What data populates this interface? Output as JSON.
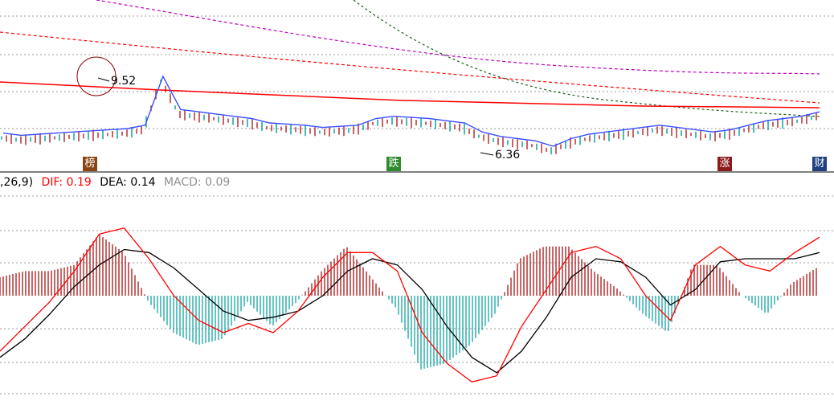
{
  "colors": {
    "up": "#b22222",
    "down": "#009b9b",
    "ma_main": "#ff0000",
    "ma_line": "#3a50ff",
    "dash_red": "#ff0000",
    "dash_purple": "#c000c0",
    "dash_green": "#206020",
    "dif": "#ff0000",
    "dea": "#000000",
    "macd_pos": "#a00000",
    "macd_neg": "#009b9b",
    "grid": "#9a9a9a",
    "divider": "#000000"
  },
  "price_panel": {
    "high_label": "9.52",
    "low_label": "6.36"
  },
  "markers": [
    {
      "label": "榜",
      "color": "#8b4513"
    },
    {
      "label": "跌",
      "color": "#2e8b2e"
    },
    {
      "label": "涨",
      "color": "#8b1a1a"
    },
    {
      "label": "财",
      "color": "#1f3f7f"
    }
  ],
  "macd_legend": {
    "params": ",26,9)",
    "dif": "DIF: 0.19",
    "dea": "DEA: 0.14",
    "macd": "MACD: 0.09"
  },
  "chart_data": [
    {
      "type": "line",
      "title": "",
      "annotations": [
        "9.52",
        "6.36"
      ],
      "series": [
        {
          "values": [
            6.95,
            6.85,
            6.9,
            6.95,
            7.0,
            7.05,
            7.1,
            7.15,
            7.3,
            9.52,
            8.0,
            7.9,
            7.8,
            7.7,
            7.6,
            7.4,
            7.35,
            7.3,
            7.2,
            7.25,
            7.3,
            7.6,
            7.7,
            7.65,
            7.6,
            7.5,
            7.4,
            7.0,
            6.8,
            6.7,
            6.6,
            6.36,
            6.7,
            6.9,
            7.0,
            7.1,
            7.2,
            7.3,
            7.2,
            7.1,
            7.0,
            7.1,
            7.3,
            7.5,
            7.6,
            7.7,
            7.9
          ]
        }
      ]
    },
    {
      "type": "bar",
      "title": "MACD",
      "legend": [
        "DIF: 0.19",
        "DEA: 0.14",
        "MACD: 0.09"
      ],
      "ylim": [
        -0.3,
        0.3
      ],
      "series": [
        {
          "name": "DIF",
          "values": [
            -0.18,
            -0.1,
            -0.02,
            0.08,
            0.2,
            0.22,
            0.12,
            0.0,
            -0.08,
            -0.12,
            -0.09,
            -0.12,
            -0.05,
            0.06,
            0.14,
            0.14,
            0.08,
            -0.12,
            -0.22,
            -0.28,
            -0.26,
            -0.1,
            0.02,
            0.14,
            0.16,
            0.12,
            0.0,
            -0.08,
            0.1,
            0.16,
            0.1,
            0.08,
            0.14,
            0.19
          ]
        },
        {
          "name": "DEA",
          "values": [
            -0.2,
            -0.14,
            -0.06,
            0.03,
            0.1,
            0.15,
            0.14,
            0.09,
            0.02,
            -0.05,
            -0.08,
            -0.07,
            -0.05,
            0.0,
            0.08,
            0.12,
            0.1,
            0.02,
            -0.1,
            -0.2,
            -0.25,
            -0.18,
            -0.07,
            0.06,
            0.12,
            0.11,
            0.06,
            -0.03,
            0.02,
            0.11,
            0.12,
            0.12,
            0.12,
            0.14
          ]
        },
        {
          "name": "MACD",
          "values": [
            0.06,
            0.08,
            0.08,
            0.1,
            0.2,
            0.14,
            -0.02,
            -0.12,
            -0.16,
            -0.14,
            -0.02,
            -0.1,
            -0.02,
            0.08,
            0.16,
            0.06,
            -0.04,
            -0.24,
            -0.22,
            -0.16,
            -0.06,
            0.12,
            0.16,
            0.16,
            0.08,
            0.02,
            -0.06,
            -0.12,
            0.1,
            0.1,
            0.0,
            -0.06,
            0.04,
            0.09
          ]
        }
      ]
    }
  ]
}
